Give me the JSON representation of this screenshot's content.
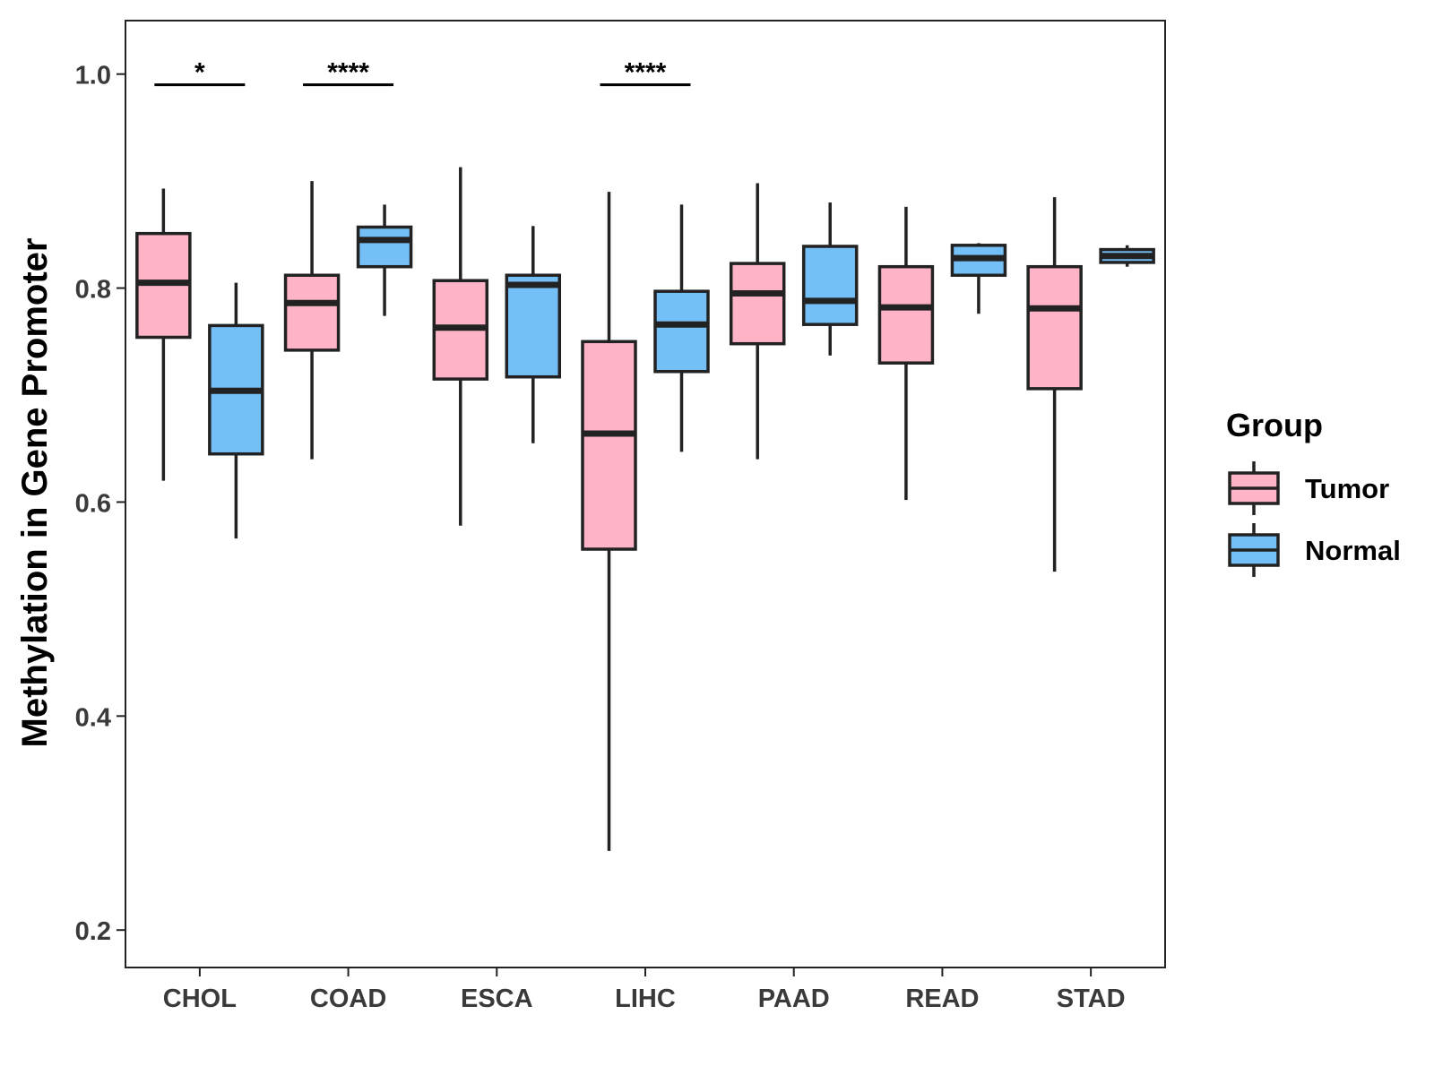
{
  "chart_data": {
    "type": "boxplot",
    "title": "",
    "xlabel": "",
    "ylabel": "Methylation in Gene Promoter",
    "ylim": [
      0.165,
      1.05
    ],
    "yticks": [
      0.2,
      0.4,
      0.6,
      0.8,
      1.0
    ],
    "ytick_labels": [
      "0.2",
      "0.4",
      "0.6",
      "0.8",
      "1.0"
    ],
    "grid": false,
    "legend_position": "right",
    "legend": {
      "title": "Group",
      "entries": [
        {
          "name": "Tumor",
          "color": "#FFB3C6"
        },
        {
          "name": "Normal",
          "color": "#75BFF7"
        }
      ]
    },
    "categories": [
      "CHOL",
      "COAD",
      "ESCA",
      "LIHC",
      "PAAD",
      "READ",
      "STAD"
    ],
    "series": [
      {
        "name": "Tumor",
        "color": "#FFB3C6",
        "boxes": [
          {
            "whisker_low": 0.62,
            "q1": 0.754,
            "median": 0.805,
            "q3": 0.851,
            "whisker_high": 0.893
          },
          {
            "whisker_low": 0.64,
            "q1": 0.742,
            "median": 0.786,
            "q3": 0.812,
            "whisker_high": 0.9
          },
          {
            "whisker_low": 0.578,
            "q1": 0.715,
            "median": 0.763,
            "q3": 0.807,
            "whisker_high": 0.913
          },
          {
            "whisker_low": 0.274,
            "q1": 0.556,
            "median": 0.664,
            "q3": 0.75,
            "whisker_high": 0.89
          },
          {
            "whisker_low": 0.64,
            "q1": 0.748,
            "median": 0.795,
            "q3": 0.823,
            "whisker_high": 0.898
          },
          {
            "whisker_low": 0.602,
            "q1": 0.73,
            "median": 0.782,
            "q3": 0.82,
            "whisker_high": 0.876
          },
          {
            "whisker_low": 0.535,
            "q1": 0.706,
            "median": 0.781,
            "q3": 0.82,
            "whisker_high": 0.885
          }
        ]
      },
      {
        "name": "Normal",
        "color": "#75BFF7",
        "boxes": [
          {
            "whisker_low": 0.566,
            "q1": 0.645,
            "median": 0.704,
            "q3": 0.765,
            "whisker_high": 0.805
          },
          {
            "whisker_low": 0.774,
            "q1": 0.82,
            "median": 0.845,
            "q3": 0.857,
            "whisker_high": 0.878
          },
          {
            "whisker_low": 0.655,
            "q1": 0.717,
            "median": 0.803,
            "q3": 0.812,
            "whisker_high": 0.858
          },
          {
            "whisker_low": 0.647,
            "q1": 0.722,
            "median": 0.766,
            "q3": 0.797,
            "whisker_high": 0.878
          },
          {
            "whisker_low": 0.737,
            "q1": 0.766,
            "median": 0.788,
            "q3": 0.839,
            "whisker_high": 0.88
          },
          {
            "whisker_low": 0.776,
            "q1": 0.812,
            "median": 0.828,
            "q3": 0.84,
            "whisker_high": 0.842
          },
          {
            "whisker_low": 0.82,
            "q1": 0.824,
            "median": 0.83,
            "q3": 0.836,
            "whisker_high": 0.84
          }
        ]
      }
    ],
    "annotations": [
      {
        "category": "CHOL",
        "label": "*",
        "y": 0.99
      },
      {
        "category": "COAD",
        "label": "****",
        "y": 0.99
      },
      {
        "category": "LIHC",
        "label": "****",
        "y": 0.99
      }
    ]
  }
}
